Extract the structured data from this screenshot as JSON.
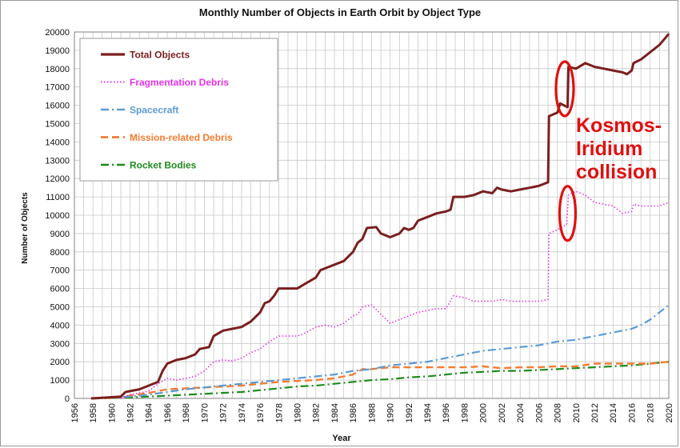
{
  "chart_data": {
    "type": "line",
    "title": "Monthly Number of Objects in Earth Orbit by Object Type",
    "xlabel": "Year",
    "ylabel": "Number of Objects",
    "xlim": [
      1956,
      2020
    ],
    "ylim": [
      0,
      20000
    ],
    "x_ticks": [
      "1956",
      "1958",
      "1960",
      "1962",
      "1964",
      "1966",
      "1968",
      "1970",
      "1972",
      "1974",
      "1976",
      "1978",
      "1980",
      "1982",
      "1984",
      "1986",
      "1988",
      "1990",
      "1992",
      "1994",
      "1996",
      "1998",
      "2000",
      "2002",
      "2004",
      "2006",
      "2008",
      "2010",
      "2012",
      "2014",
      "2016",
      "2018",
      "2020"
    ],
    "y_ticks": [
      "0",
      "1000",
      "2000",
      "3000",
      "4000",
      "5000",
      "6000",
      "7000",
      "8000",
      "9000",
      "10000",
      "11000",
      "12000",
      "13000",
      "14000",
      "15000",
      "16000",
      "17000",
      "18000",
      "19000",
      "20000"
    ],
    "grid": true,
    "legend_position": "top-left",
    "series": [
      {
        "name": "Total Objects",
        "color": "#7b1f1f",
        "style": "solid",
        "points": [
          [
            1957.8,
            0
          ],
          [
            1959,
            30
          ],
          [
            1961,
            100
          ],
          [
            1961.5,
            350
          ],
          [
            1963,
            500
          ],
          [
            1964,
            700
          ],
          [
            1965,
            900
          ],
          [
            1965.5,
            1500
          ],
          [
            1966,
            1900
          ],
          [
            1967,
            2100
          ],
          [
            1968,
            2200
          ],
          [
            1969,
            2400
          ],
          [
            1969.5,
            2700
          ],
          [
            1970.5,
            2800
          ],
          [
            1971,
            3400
          ],
          [
            1972,
            3700
          ],
          [
            1973,
            3800
          ],
          [
            1974,
            3900
          ],
          [
            1975,
            4200
          ],
          [
            1976,
            4700
          ],
          [
            1976.5,
            5200
          ],
          [
            1977,
            5300
          ],
          [
            1977.5,
            5600
          ],
          [
            1978,
            6000
          ],
          [
            1979,
            6000
          ],
          [
            1980,
            6000
          ],
          [
            1981,
            6300
          ],
          [
            1982,
            6600
          ],
          [
            1982.5,
            7000
          ],
          [
            1983,
            7100
          ],
          [
            1984,
            7300
          ],
          [
            1985,
            7500
          ],
          [
            1986,
            8000
          ],
          [
            1986.5,
            8500
          ],
          [
            1987,
            8700
          ],
          [
            1987.5,
            9300
          ],
          [
            1988.5,
            9350
          ],
          [
            1989,
            9000
          ],
          [
            1990,
            8800
          ],
          [
            1991,
            9000
          ],
          [
            1991.5,
            9300
          ],
          [
            1992,
            9200
          ],
          [
            1992.5,
            9300
          ],
          [
            1993,
            9700
          ],
          [
            1994,
            9900
          ],
          [
            1995,
            10100
          ],
          [
            1996,
            10200
          ],
          [
            1996.5,
            10300
          ],
          [
            1996.8,
            11000
          ],
          [
            1998,
            11000
          ],
          [
            1999,
            11100
          ],
          [
            2000,
            11300
          ],
          [
            2001,
            11200
          ],
          [
            2001.5,
            11500
          ],
          [
            2002,
            11400
          ],
          [
            2003,
            11300
          ],
          [
            2004,
            11400
          ],
          [
            2005,
            11500
          ],
          [
            2006,
            11600
          ],
          [
            2007,
            11800
          ],
          [
            2007.1,
            15400
          ],
          [
            2008,
            15600
          ],
          [
            2008.3,
            16100
          ],
          [
            2009.1,
            15900
          ],
          [
            2009.2,
            18100
          ],
          [
            2010,
            18000
          ],
          [
            2011,
            18300
          ],
          [
            2012,
            18100
          ],
          [
            2013,
            18000
          ],
          [
            2014,
            17900
          ],
          [
            2015,
            17800
          ],
          [
            2015.5,
            17700
          ],
          [
            2016,
            17900
          ],
          [
            2016.2,
            18300
          ],
          [
            2017,
            18500
          ],
          [
            2018,
            18900
          ],
          [
            2019,
            19300
          ],
          [
            2019.5,
            19600
          ],
          [
            2020,
            19900
          ]
        ]
      },
      {
        "name": "Fragmentation Debris",
        "color": "#e633e6",
        "style": "dotted",
        "points": [
          [
            1961,
            0
          ],
          [
            1962,
            200
          ],
          [
            1963,
            300
          ],
          [
            1964,
            400
          ],
          [
            1965,
            800
          ],
          [
            1966,
            1100
          ],
          [
            1967,
            1000
          ],
          [
            1968,
            1100
          ],
          [
            1969,
            1200
          ],
          [
            1970,
            1500
          ],
          [
            1971,
            2000
          ],
          [
            1972,
            2100
          ],
          [
            1973,
            2050
          ],
          [
            1974,
            2200
          ],
          [
            1975,
            2500
          ],
          [
            1976,
            2700
          ],
          [
            1977,
            3100
          ],
          [
            1978,
            3400
          ],
          [
            1979,
            3400
          ],
          [
            1980,
            3400
          ],
          [
            1981,
            3600
          ],
          [
            1982,
            3900
          ],
          [
            1983,
            4000
          ],
          [
            1984,
            3900
          ],
          [
            1985,
            4100
          ],
          [
            1986,
            4500
          ],
          [
            1986.5,
            4600
          ],
          [
            1987,
            5000
          ],
          [
            1988,
            5100
          ],
          [
            1989,
            4600
          ],
          [
            1990,
            4100
          ],
          [
            1991,
            4300
          ],
          [
            1992,
            4500
          ],
          [
            1993,
            4700
          ],
          [
            1994,
            4800
          ],
          [
            1995,
            4900
          ],
          [
            1996,
            4900
          ],
          [
            1996.8,
            5600
          ],
          [
            1998,
            5500
          ],
          [
            1999,
            5300
          ],
          [
            2000,
            5300
          ],
          [
            2001,
            5300
          ],
          [
            2002,
            5400
          ],
          [
            2003,
            5300
          ],
          [
            2004,
            5300
          ],
          [
            2005,
            5300
          ],
          [
            2006,
            5300
          ],
          [
            2007,
            5400
          ],
          [
            2007.1,
            9000
          ],
          [
            2008,
            9200
          ],
          [
            2009,
            9500
          ],
          [
            2009.2,
            11100
          ],
          [
            2010,
            11300
          ],
          [
            2011,
            11100
          ],
          [
            2012,
            10700
          ],
          [
            2013,
            10600
          ],
          [
            2014,
            10500
          ],
          [
            2015,
            10100
          ],
          [
            2016,
            10200
          ],
          [
            2016.2,
            10600
          ],
          [
            2017,
            10500
          ],
          [
            2018,
            10500
          ],
          [
            2019,
            10500
          ],
          [
            2020,
            10700
          ]
        ]
      },
      {
        "name": "Spacecraft",
        "color": "#5b9bd5",
        "style": "dashdot",
        "points": [
          [
            1957.8,
            0
          ],
          [
            1960,
            50
          ],
          [
            1962,
            100
          ],
          [
            1964,
            200
          ],
          [
            1966,
            350
          ],
          [
            1968,
            500
          ],
          [
            1970,
            600
          ],
          [
            1972,
            700
          ],
          [
            1974,
            800
          ],
          [
            1976,
            900
          ],
          [
            1978,
            1000
          ],
          [
            1980,
            1100
          ],
          [
            1982,
            1200
          ],
          [
            1984,
            1300
          ],
          [
            1986,
            1500
          ],
          [
            1988,
            1600
          ],
          [
            1990,
            1800
          ],
          [
            1992,
            1900
          ],
          [
            1994,
            2000
          ],
          [
            1996,
            2200
          ],
          [
            1998,
            2400
          ],
          [
            2000,
            2600
          ],
          [
            2002,
            2700
          ],
          [
            2004,
            2800
          ],
          [
            2006,
            2900
          ],
          [
            2008,
            3100
          ],
          [
            2010,
            3200
          ],
          [
            2012,
            3400
          ],
          [
            2014,
            3600
          ],
          [
            2016,
            3800
          ],
          [
            2017,
            4000
          ],
          [
            2018,
            4300
          ],
          [
            2019,
            4700
          ],
          [
            2020,
            5100
          ]
        ]
      },
      {
        "name": "Mission-related Debris",
        "color": "#f47c30",
        "style": "dashed",
        "points": [
          [
            1958,
            0
          ],
          [
            1960,
            20
          ],
          [
            1962,
            150
          ],
          [
            1964,
            300
          ],
          [
            1966,
            500
          ],
          [
            1968,
            550
          ],
          [
            1970,
            600
          ],
          [
            1972,
            650
          ],
          [
            1974,
            700
          ],
          [
            1976,
            800
          ],
          [
            1978,
            900
          ],
          [
            1980,
            950
          ],
          [
            1982,
            1000
          ],
          [
            1984,
            1100
          ],
          [
            1986,
            1300
          ],
          [
            1987,
            1600
          ],
          [
            1988,
            1600
          ],
          [
            1990,
            1700
          ],
          [
            1992,
            1700
          ],
          [
            1994,
            1700
          ],
          [
            1996,
            1700
          ],
          [
            1998,
            1700
          ],
          [
            2000,
            1750
          ],
          [
            2002,
            1650
          ],
          [
            2004,
            1700
          ],
          [
            2006,
            1700
          ],
          [
            2008,
            1750
          ],
          [
            2010,
            1750
          ],
          [
            2012,
            1900
          ],
          [
            2014,
            1900
          ],
          [
            2016,
            1900
          ],
          [
            2018,
            1900
          ],
          [
            2020,
            2000
          ]
        ]
      },
      {
        "name": "Rocket Bodies",
        "color": "#1e8c1e",
        "style": "dashdot",
        "points": [
          [
            1958,
            0
          ],
          [
            1962,
            50
          ],
          [
            1964,
            100
          ],
          [
            1966,
            150
          ],
          [
            1968,
            200
          ],
          [
            1970,
            250
          ],
          [
            1972,
            300
          ],
          [
            1974,
            350
          ],
          [
            1976,
            450
          ],
          [
            1978,
            550
          ],
          [
            1980,
            650
          ],
          [
            1982,
            700
          ],
          [
            1984,
            800
          ],
          [
            1986,
            900
          ],
          [
            1988,
            1000
          ],
          [
            1990,
            1050
          ],
          [
            1992,
            1150
          ],
          [
            1994,
            1200
          ],
          [
            1996,
            1300
          ],
          [
            1998,
            1400
          ],
          [
            2000,
            1450
          ],
          [
            2002,
            1500
          ],
          [
            2004,
            1500
          ],
          [
            2006,
            1550
          ],
          [
            2008,
            1600
          ],
          [
            2010,
            1650
          ],
          [
            2012,
            1700
          ],
          [
            2014,
            1750
          ],
          [
            2016,
            1800
          ],
          [
            2018,
            1900
          ],
          [
            2020,
            2000
          ]
        ]
      }
    ],
    "annotations": [
      {
        "text": "Kosmos-\nIridium\ncollision",
        "color": "#e01010",
        "x": 2009.2,
        "y": 18000
      }
    ]
  }
}
